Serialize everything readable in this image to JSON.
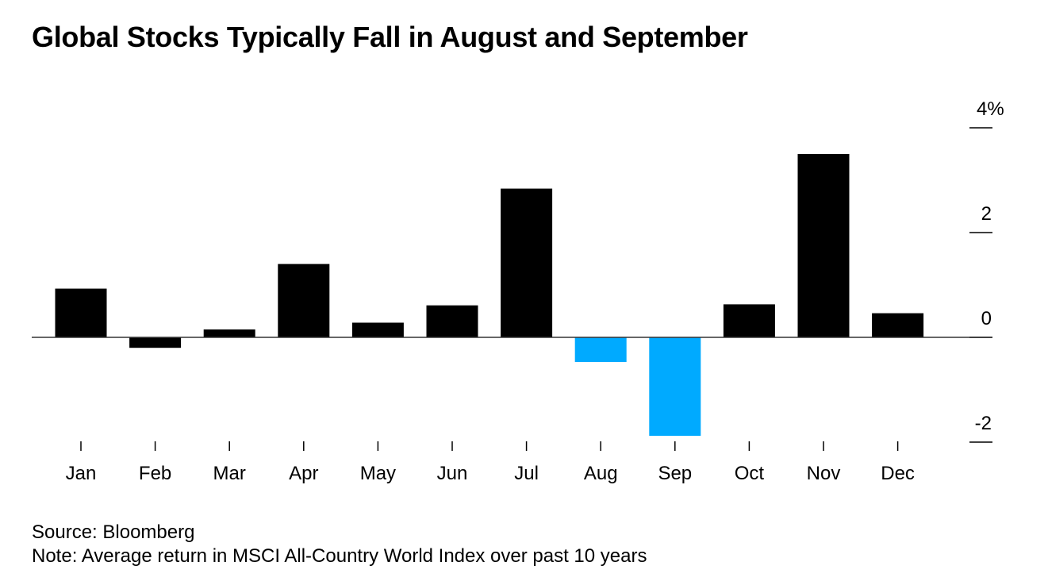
{
  "title": "Global Stocks Typically Fall in August and September",
  "source": "Source: Bloomberg",
  "note": "Note: Average return in MSCI All-Country World Index over past 10 years",
  "colors": {
    "positive": "#000000",
    "negative_highlight": "#00aaff",
    "axis": "#000000"
  },
  "chart_data": {
    "type": "bar",
    "categories": [
      "Jan",
      "Feb",
      "Mar",
      "Apr",
      "May",
      "Jun",
      "Jul",
      "Aug",
      "Sep",
      "Oct",
      "Nov",
      "Dec"
    ],
    "values": [
      0.93,
      -0.2,
      0.15,
      1.4,
      0.28,
      0.61,
      2.84,
      -0.47,
      -1.88,
      0.63,
      3.5,
      0.46
    ],
    "highlight": [
      "Aug",
      "Sep"
    ],
    "ylim": [
      -2.1,
      4
    ],
    "yticks": [
      4,
      2,
      0,
      -2
    ],
    "ytick_labels": [
      "4%",
      "2",
      "0",
      "-2"
    ],
    "axis_position": "right",
    "grid": false,
    "xlabel": "",
    "ylabel": ""
  }
}
